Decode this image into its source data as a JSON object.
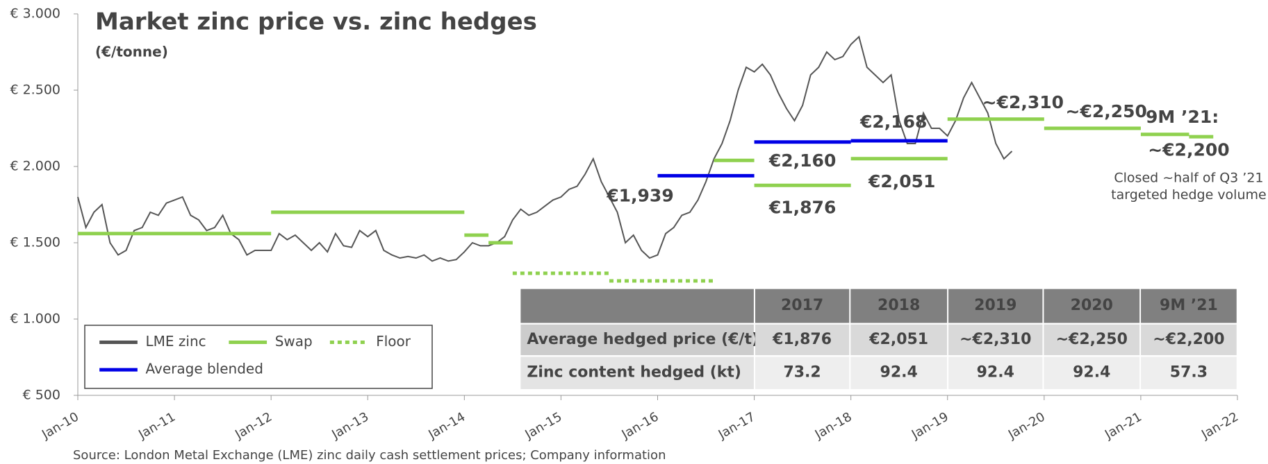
{
  "chart_data": {
    "type": "line",
    "title": "Market zinc price vs. zinc hedges",
    "subtitle": "(€/tonne)",
    "source": "Source: London Metal Exchange (LME) zinc daily cash settlement prices; Company information",
    "xlim": [
      "Jan-10",
      "Jan-22"
    ],
    "xticks": [
      "Jan-10",
      "Jan-11",
      "Jan-12",
      "Jan-13",
      "Jan-14",
      "Jan-15",
      "Jan-16",
      "Jan-17",
      "Jan-18",
      "Jan-19",
      "Jan-20",
      "Jan-21",
      "Jan-22"
    ],
    "ylim": [
      500,
      3000
    ],
    "yticks": [
      {
        "value": 500,
        "label": "€ 500"
      },
      {
        "value": 1000,
        "label": "€ 1.000"
      },
      {
        "value": 1500,
        "label": "€ 1.500"
      },
      {
        "value": 2000,
        "label": "€ 2.000"
      },
      {
        "value": 2500,
        "label": "€ 2.500"
      },
      {
        "value": 3000,
        "label": "€ 3.000"
      }
    ],
    "series": [
      {
        "name": "LME zinc",
        "color": "#555555",
        "style": "line",
        "x": [
          "Jan-10",
          "Feb-10",
          "Mar-10",
          "Apr-10",
          "May-10",
          "Jun-10",
          "Jul-10",
          "Aug-10",
          "Sep-10",
          "Oct-10",
          "Nov-10",
          "Dec-10",
          "Jan-11",
          "Feb-11",
          "Mar-11",
          "Apr-11",
          "May-11",
          "Jun-11",
          "Jul-11",
          "Aug-11",
          "Sep-11",
          "Oct-11",
          "Nov-11",
          "Dec-11",
          "Jan-12",
          "Feb-12",
          "Mar-12",
          "Apr-12",
          "May-12",
          "Jun-12",
          "Jul-12",
          "Aug-12",
          "Sep-12",
          "Oct-12",
          "Nov-12",
          "Dec-12",
          "Jan-13",
          "Feb-13",
          "Mar-13",
          "Apr-13",
          "May-13",
          "Jun-13",
          "Jul-13",
          "Aug-13",
          "Sep-13",
          "Oct-13",
          "Nov-13",
          "Dec-13",
          "Jan-14",
          "Feb-14",
          "Mar-14",
          "Apr-14",
          "May-14",
          "Jun-14",
          "Jul-14",
          "Aug-14",
          "Sep-14",
          "Oct-14",
          "Nov-14",
          "Dec-14",
          "Jan-15",
          "Feb-15",
          "Mar-15",
          "Apr-15",
          "May-15",
          "Jun-15",
          "Jul-15",
          "Aug-15",
          "Sep-15",
          "Oct-15",
          "Nov-15",
          "Dec-15",
          "Jan-16",
          "Feb-16",
          "Mar-16",
          "Apr-16",
          "May-16",
          "Jun-16",
          "Jul-16",
          "Aug-16",
          "Sep-16",
          "Oct-16",
          "Nov-16",
          "Dec-16",
          "Jan-17",
          "Feb-17",
          "Mar-17",
          "Apr-17",
          "May-17",
          "Jun-17",
          "Jul-17",
          "Aug-17",
          "Sep-17",
          "Oct-17",
          "Nov-17",
          "Dec-17",
          "Jan-18",
          "Feb-18",
          "Mar-18",
          "Apr-18",
          "May-18",
          "Jun-18",
          "Jul-18",
          "Aug-18",
          "Sep-18",
          "Oct-18",
          "Nov-18",
          "Dec-18",
          "Jan-19",
          "Feb-19",
          "Mar-19",
          "Apr-19",
          "May-19",
          "Jun-19",
          "Jul-19",
          "Aug-19",
          "Sep-19"
        ],
        "values": [
          1800,
          1600,
          1700,
          1750,
          1500,
          1420,
          1450,
          1580,
          1600,
          1700,
          1680,
          1760,
          1780,
          1800,
          1680,
          1650,
          1580,
          1600,
          1680,
          1560,
          1520,
          1420,
          1450,
          1450,
          1450,
          1560,
          1520,
          1550,
          1500,
          1450,
          1500,
          1440,
          1560,
          1480,
          1470,
          1580,
          1540,
          1580,
          1450,
          1420,
          1400,
          1410,
          1400,
          1420,
          1380,
          1400,
          1380,
          1390,
          1440,
          1500,
          1480,
          1480,
          1500,
          1540,
          1650,
          1720,
          1680,
          1700,
          1740,
          1780,
          1800,
          1850,
          1870,
          1950,
          2050,
          1900,
          1800,
          1700,
          1500,
          1550,
          1450,
          1400,
          1420,
          1560,
          1600,
          1680,
          1700,
          1780,
          1900,
          2050,
          2150,
          2300,
          2500,
          2650,
          2620,
          2670,
          2600,
          2480,
          2380,
          2300,
          2400,
          2600,
          2650,
          2750,
          2700,
          2720,
          2800,
          2850,
          2650,
          2600,
          2550,
          2600,
          2300,
          2150,
          2150,
          2350,
          2250,
          2250,
          2200,
          2300,
          2450,
          2550,
          2450,
          2350,
          2150,
          2050,
          2100
        ]
      },
      {
        "name": "Swap",
        "color": "#8fd14f",
        "style": "solid",
        "segments": [
          {
            "start": "Jan-10",
            "end": "Jan-12",
            "value": 1560
          },
          {
            "start": "Jan-12",
            "end": "Jan-14",
            "value": 1700
          },
          {
            "start": "Jan-14",
            "end": "Apr-14",
            "value": 1550
          },
          {
            "start": "Apr-14",
            "end": "Jul-14",
            "value": 1500
          },
          {
            "start": "Aug-16",
            "end": "Jan-17",
            "value": 2040
          },
          {
            "start": "Jan-17",
            "end": "Jan-18",
            "value": 1876,
            "label": "€1,876"
          },
          {
            "start": "Jan-18",
            "end": "Jan-19",
            "value": 2051,
            "label": "€2,051"
          },
          {
            "start": "Jan-19",
            "end": "Jan-20",
            "value": 2310
          },
          {
            "start": "Jan-20",
            "end": "Jan-21",
            "value": 2250
          },
          {
            "start": "Jan-21",
            "end": "Jul-21",
            "value": 2210
          },
          {
            "start": "Jul-21",
            "end": "Oct-21",
            "value": 2195
          }
        ]
      },
      {
        "name": "Floor",
        "color": "#8fd14f",
        "style": "dotted",
        "segments": [
          {
            "start": "Jul-14",
            "end": "Jul-15",
            "value": 1300
          },
          {
            "start": "Jul-15",
            "end": "Aug-16",
            "value": 1250
          }
        ]
      },
      {
        "name": "Average blended",
        "color": "#0000e6",
        "style": "solid",
        "segments": [
          {
            "start": "Jan-16",
            "end": "Jan-17",
            "value": 1939,
            "label": "€1,939"
          },
          {
            "start": "Jan-17",
            "end": "Jan-18",
            "value": 2160,
            "label": "€2,160"
          },
          {
            "start": "Jan-18",
            "end": "Jan-19",
            "value": 2168,
            "label": "€2,168"
          }
        ]
      }
    ],
    "annotations": [
      "~€2,310",
      "~€2,250",
      "9M ’21:",
      "~€2,200",
      "Closed ~half of Q3 ’21",
      "targeted hedge volume"
    ],
    "table": {
      "columns": [
        "2017",
        "2018",
        "2019",
        "2020",
        "9M ’21"
      ],
      "rows": [
        {
          "label": "Average hedged price (€/t)",
          "cells": [
            "€1,876",
            "€2,051",
            "~€2,310",
            "~€2,250",
            "~€2,200"
          ]
        },
        {
          "label": "Zinc content hedged (kt)",
          "cells": [
            "73.2",
            "92.4",
            "92.4",
            "92.4",
            "57.3"
          ]
        }
      ]
    }
  }
}
